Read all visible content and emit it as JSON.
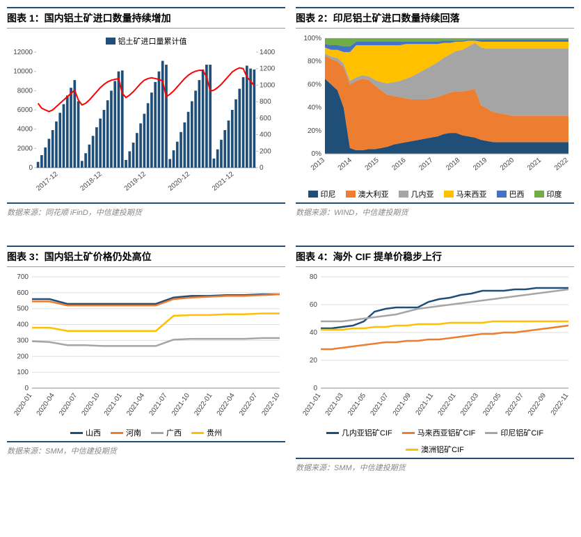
{
  "chart1": {
    "title": "图表 1：国内铝土矿进口数量持续增加",
    "source": "数据来源：同花顺 iFinD，中信建投期货",
    "legend_bar": "铝土矿进口量累计值",
    "type": "bar+line",
    "bar_color": "#1f4e79",
    "line_color": "#ff0000",
    "y1_ticks": [
      0,
      2000,
      4000,
      6000,
      8000,
      10000,
      12000
    ],
    "y2_ticks": [
      0,
      200,
      400,
      600,
      800,
      1000,
      1200,
      1400
    ],
    "x_labels": [
      "2017-12",
      "2018-12",
      "2019-12",
      "2020-12",
      "2021-12"
    ],
    "bars": [
      600,
      1300,
      2100,
      3000,
      3900,
      4800,
      5700,
      6600,
      7500,
      8300,
      9100,
      6900,
      700,
      1500,
      2400,
      3300,
      4200,
      5100,
      6000,
      7000,
      8000,
      9000,
      10000,
      10100,
      800,
      1700,
      2600,
      3600,
      4600,
      5600,
      6700,
      7800,
      8900,
      10000,
      11100,
      10700,
      900,
      1800,
      2700,
      3700,
      4700,
      5800,
      6900,
      8000,
      9100,
      10200,
      10700,
      10700,
      950,
      1900,
      2900,
      3900,
      4900,
      6000,
      7100,
      8200,
      9400,
      10600,
      10300,
      10200
    ],
    "line": [
      780,
      720,
      700,
      680,
      700,
      740,
      780,
      820,
      860,
      900,
      940,
      820,
      760,
      780,
      820,
      870,
      920,
      970,
      1010,
      1040,
      1060,
      1070,
      1080,
      900,
      850,
      880,
      920,
      970,
      1020,
      1060,
      1080,
      1090,
      1080,
      1070,
      1050,
      860,
      890,
      930,
      980,
      1030,
      1080,
      1120,
      1150,
      1170,
      1180,
      1180,
      1100,
      930,
      940,
      970,
      1010,
      1060,
      1110,
      1160,
      1190,
      1210,
      1200,
      1100,
      1050,
      990
    ]
  },
  "chart2": {
    "title": "图表 2：印尼铝土矿进口数量持续回落",
    "source": "数据来源：WIND，中信建投期货",
    "type": "stacked_area",
    "x_labels": [
      "2013",
      "2014",
      "2015",
      "2016",
      "2017",
      "2018",
      "2019",
      "2020",
      "2021",
      "2022"
    ],
    "y_ticks": [
      0,
      20,
      40,
      60,
      80,
      100
    ],
    "y_suffix": "%",
    "series": [
      {
        "name": "印尼",
        "color": "#1f4e79"
      },
      {
        "name": "澳大利亚",
        "color": "#ed7d31"
      },
      {
        "name": "几内亚",
        "color": "#a5a5a5"
      },
      {
        "name": "马来西亚",
        "color": "#ffc000"
      },
      {
        "name": "巴西",
        "color": "#4472c4"
      },
      {
        "name": "印度",
        "color": "#70ad47"
      }
    ],
    "data": [
      [
        65,
        60,
        55,
        40,
        5,
        3,
        3,
        4,
        4,
        5,
        6,
        8,
        9,
        10,
        11,
        12,
        13,
        14,
        15,
        17,
        18,
        18,
        16,
        15,
        14,
        12,
        11,
        10,
        10,
        10,
        10,
        10,
        10,
        10,
        10,
        10,
        10,
        10,
        10,
        10
      ],
      [
        20,
        22,
        25,
        35,
        55,
        60,
        62,
        60,
        55,
        50,
        45,
        42,
        40,
        38,
        36,
        35,
        34,
        34,
        34,
        34,
        35,
        36,
        38,
        40,
        42,
        30,
        28,
        26,
        25,
        24,
        23,
        23,
        23,
        23,
        23,
        23,
        23,
        23,
        23,
        23
      ],
      [
        2,
        2,
        3,
        3,
        3,
        3,
        3,
        3,
        5,
        7,
        10,
        12,
        14,
        17,
        20,
        23,
        26,
        28,
        30,
        32,
        33,
        35,
        36,
        38,
        40,
        50,
        52,
        55,
        56,
        57,
        58,
        58,
        58,
        58,
        58,
        58,
        58,
        58,
        58,
        58
      ],
      [
        5,
        6,
        7,
        10,
        25,
        28,
        26,
        27,
        30,
        32,
        33,
        32,
        31,
        30,
        28,
        25,
        22,
        19,
        16,
        13,
        10,
        8,
        7,
        5,
        2,
        5,
        6,
        6,
        6,
        6,
        6,
        6,
        6,
        6,
        6,
        6,
        6,
        6,
        6,
        6
      ],
      [
        3,
        4,
        4,
        5,
        5,
        3,
        3,
        3,
        3,
        3,
        3,
        3,
        3,
        2,
        2,
        2,
        2,
        2,
        2,
        2,
        2,
        1,
        1,
        1,
        1,
        2,
        2,
        2,
        2,
        2,
        2,
        2,
        2,
        2,
        2,
        2,
        2,
        2,
        2,
        2
      ],
      [
        5,
        6,
        6,
        7,
        7,
        3,
        3,
        3,
        3,
        3,
        3,
        3,
        3,
        3,
        3,
        3,
        3,
        3,
        3,
        2,
        2,
        2,
        2,
        1,
        1,
        1,
        1,
        1,
        1,
        1,
        1,
        1,
        1,
        1,
        1,
        1,
        1,
        1,
        1,
        1
      ]
    ]
  },
  "chart3": {
    "title": "图表 3：国内铝土矿价格仍处高位",
    "source": "数据来源：SMM，中信建投期货",
    "type": "line",
    "y_ticks": [
      0,
      100,
      200,
      300,
      400,
      500,
      600,
      700
    ],
    "x_labels": [
      "2020-01",
      "2020-04",
      "2020-07",
      "2020-10",
      "2021-01",
      "2021-04",
      "2021-07",
      "2021-10",
      "2022-01",
      "2022-04",
      "2022-07",
      "2022-10"
    ],
    "series": [
      {
        "name": "山西",
        "color": "#1f4e79",
        "data": [
          560,
          560,
          530,
          530,
          530,
          530,
          530,
          530,
          570,
          580,
          580,
          585,
          585,
          590,
          590
        ]
      },
      {
        "name": "河南",
        "color": "#ed7d31",
        "data": [
          545,
          545,
          520,
          520,
          520,
          520,
          520,
          520,
          560,
          570,
          575,
          580,
          580,
          585,
          590
        ]
      },
      {
        "name": "广西",
        "color": "#a5a5a5",
        "data": [
          295,
          290,
          270,
          270,
          265,
          265,
          265,
          265,
          305,
          310,
          310,
          310,
          310,
          315,
          315
        ]
      },
      {
        "name": "贵州",
        "color": "#ffc000",
        "data": [
          380,
          380,
          360,
          360,
          360,
          360,
          360,
          360,
          455,
          460,
          460,
          465,
          465,
          470,
          470
        ]
      }
    ]
  },
  "chart4": {
    "title": "图表 4：海外 CIF 提单价稳步上行",
    "source": "数据来源：SMM，中信建投期货",
    "type": "line",
    "y_ticks": [
      0,
      20,
      40,
      60,
      80
    ],
    "x_labels": [
      "2021-01",
      "2021-03",
      "2021-05",
      "2021-07",
      "2021-09",
      "2021-11",
      "2022-01",
      "2022-03",
      "2022-05",
      "2022-07",
      "2022-09",
      "2022-11"
    ],
    "series": [
      {
        "name": "几内亚铝矿CIF",
        "color": "#1f4e79",
        "data": [
          43,
          43,
          44,
          45,
          48,
          55,
          57,
          58,
          58,
          58,
          62,
          64,
          65,
          67,
          68,
          70,
          70,
          70,
          71,
          71,
          72,
          72,
          72,
          72
        ]
      },
      {
        "name": "马来西亚铝矿CIF",
        "color": "#ed7d31",
        "data": [
          28,
          28,
          29,
          30,
          31,
          32,
          33,
          33,
          34,
          34,
          35,
          35,
          36,
          37,
          38,
          39,
          39,
          40,
          40,
          41,
          42,
          43,
          44,
          45
        ]
      },
      {
        "name": "印尼铝矿CIF",
        "color": "#a5a5a5",
        "data": [
          48,
          48,
          48,
          49,
          50,
          51,
          52,
          53,
          55,
          57,
          58,
          59,
          60,
          61,
          62,
          63,
          64,
          65,
          66,
          67,
          68,
          69,
          70,
          71
        ]
      },
      {
        "name": "澳洲铝矿CIF",
        "color": "#ffc000",
        "data": [
          42,
          42,
          42,
          43,
          43,
          44,
          44,
          45,
          45,
          46,
          46,
          46,
          47,
          47,
          47,
          47,
          48,
          48,
          48,
          48,
          48,
          48,
          48,
          48
        ]
      }
    ]
  }
}
